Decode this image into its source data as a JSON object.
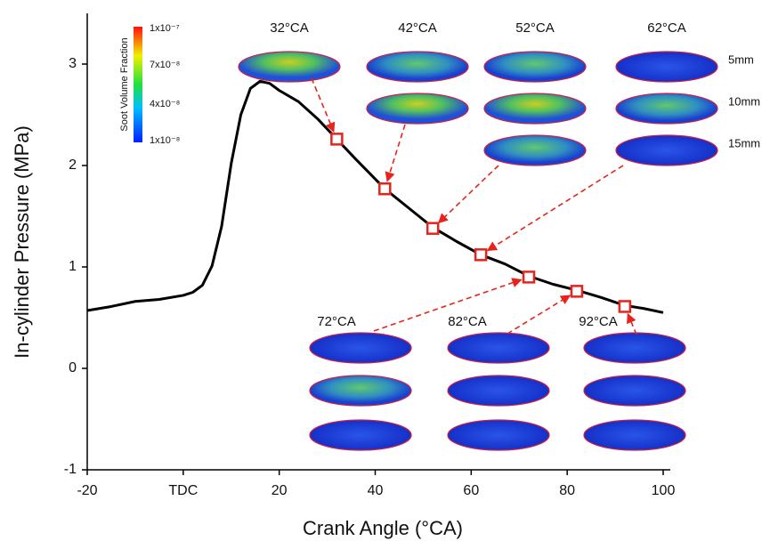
{
  "chart_data": {
    "type": "line",
    "xlabel": "Crank Angle (°CA)",
    "ylabel": "In-cylinder Pressure (MPa)",
    "xlim": [
      -20,
      100
    ],
    "ylim": [
      -1,
      3.5
    ],
    "xticks": [
      -20,
      {
        "value": 0,
        "label": "TDC"
      },
      20,
      40,
      60,
      80,
      100
    ],
    "yticks": [
      -1,
      0,
      1,
      2,
      3
    ],
    "x": [
      -20,
      -15,
      -10,
      -5,
      0,
      2,
      4,
      6,
      8,
      10,
      12,
      14,
      16,
      18,
      20,
      24,
      28,
      32,
      36,
      42,
      47,
      52,
      57,
      62,
      67,
      72,
      77,
      82,
      87,
      92,
      96,
      100
    ],
    "series": [
      {
        "color": "#000000",
        "values": [
          0.57,
          0.61,
          0.66,
          0.68,
          0.72,
          0.75,
          0.82,
          1.01,
          1.4,
          2.02,
          2.5,
          2.76,
          2.83,
          2.81,
          2.74,
          2.63,
          2.46,
          2.26,
          2.06,
          1.77,
          1.58,
          1.39,
          1.25,
          1.12,
          1.03,
          0.91,
          0.83,
          0.77,
          0.7,
          0.62,
          0.59,
          0.55
        ]
      }
    ],
    "marker_x": [
      32,
      42,
      52,
      62,
      72,
      82,
      92
    ],
    "marker_values": [
      2.26,
      1.77,
      1.38,
      1.12,
      0.9,
      0.76,
      0.61
    ],
    "marker_color": "#e8231c",
    "colorbar": {
      "title": "Soot Volume Fraction",
      "labels": [
        "1x10⁻⁷",
        "7x10⁻⁸",
        "4x10⁻⁸",
        "1x10⁻⁸"
      ]
    },
    "top_labels": [
      "32°CA",
      "42°CA",
      "52°CA",
      "62°CA"
    ],
    "bottom_labels": [
      "72°CA",
      "82°CA",
      "92°CA"
    ],
    "depth_labels": [
      "5mm",
      "10mm",
      "15mm"
    ]
  }
}
